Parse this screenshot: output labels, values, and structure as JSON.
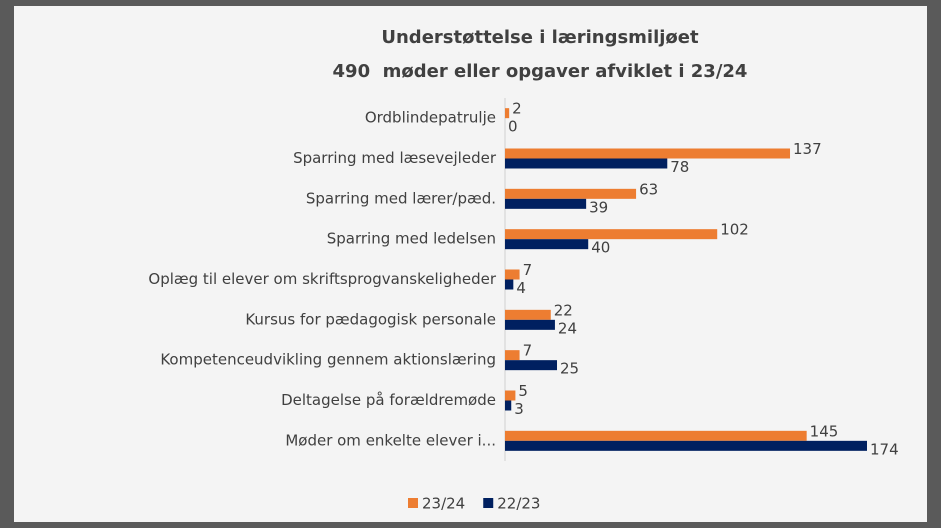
{
  "chart_data": {
    "type": "bar",
    "orientation": "horizontal",
    "title": [
      "Understøttelse i læringsmiljøet",
      "490  møder eller opgaver afviklet i 23/24"
    ],
    "categories": [
      "Ordblindepatrulje",
      "Sparring med læsevejleder",
      "Sparring med lærer/pæd.",
      "Sparring med ledelsen",
      "Oplæg til elever om skriftsprogvanskeligheder",
      "Kursus for pædagogisk personale",
      "Kompetenceudvikling gennem aktionslæring",
      "Deltagelse på forældremøde",
      "Møder om enkelte elever i..."
    ],
    "series": [
      {
        "name": "23/24",
        "color": "#ed7d31",
        "values": [
          2,
          137,
          63,
          102,
          7,
          22,
          7,
          5,
          145
        ]
      },
      {
        "name": "22/23",
        "color": "#002060",
        "values": [
          0,
          78,
          39,
          40,
          4,
          24,
          25,
          3,
          174
        ]
      }
    ],
    "legend": "bottom"
  }
}
